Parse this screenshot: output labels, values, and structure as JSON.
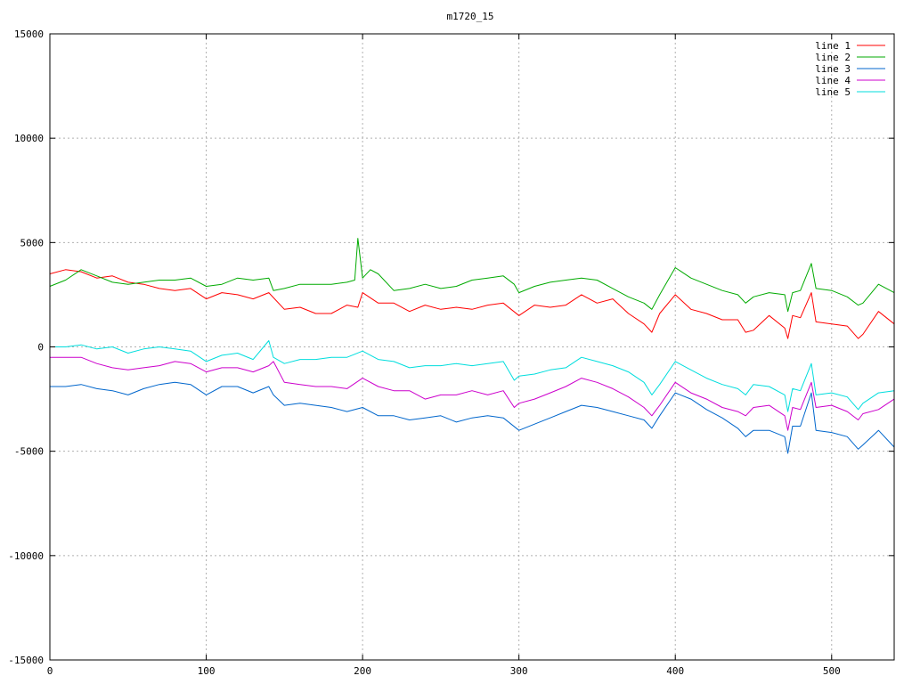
{
  "chart_data": {
    "type": "line",
    "title": "m1720_15",
    "xlabel": "",
    "ylabel": "",
    "xlim": [
      0,
      540
    ],
    "ylim": [
      -15000,
      15000
    ],
    "xticks": [
      0,
      100,
      200,
      300,
      400,
      500
    ],
    "yticks": [
      -15000,
      -10000,
      -5000,
      0,
      5000,
      10000,
      15000
    ],
    "grid": true,
    "legend_position": "top-right",
    "series": [
      {
        "name": "line 1",
        "color": "#ff0000",
        "x": [
          0,
          10,
          20,
          30,
          40,
          50,
          60,
          70,
          80,
          90,
          100,
          110,
          120,
          130,
          140,
          150,
          160,
          170,
          180,
          190,
          197,
          200,
          210,
          220,
          230,
          240,
          250,
          260,
          270,
          280,
          290,
          300,
          310,
          320,
          330,
          340,
          350,
          360,
          370,
          380,
          385,
          390,
          400,
          410,
          420,
          430,
          440,
          445,
          450,
          460,
          470,
          472,
          475,
          480,
          487,
          490,
          500,
          510,
          517,
          520,
          530,
          540
        ],
        "values": [
          3500,
          3700,
          3600,
          3300,
          3400,
          3100,
          3000,
          2800,
          2700,
          2800,
          2300,
          2600,
          2500,
          2300,
          2600,
          1800,
          1900,
          1600,
          1600,
          2000,
          1900,
          2600,
          2100,
          2100,
          1700,
          2000,
          1800,
          1900,
          1800,
          2000,
          2100,
          1500,
          2000,
          1900,
          2000,
          2500,
          2100,
          2300,
          1600,
          1100,
          700,
          1600,
          2500,
          1800,
          1600,
          1300,
          1300,
          700,
          800,
          1500,
          900,
          400,
          1500,
          1400,
          2600,
          1200,
          1100,
          1000,
          400,
          600,
          1700,
          1100
        ]
      },
      {
        "name": "line 2",
        "color": "#00aa00",
        "x": [
          0,
          10,
          20,
          30,
          40,
          50,
          60,
          70,
          80,
          90,
          100,
          110,
          120,
          130,
          140,
          143,
          150,
          160,
          170,
          180,
          190,
          195,
          197,
          200,
          205,
          210,
          220,
          230,
          240,
          250,
          260,
          270,
          280,
          290,
          297,
          300,
          310,
          320,
          330,
          340,
          350,
          360,
          370,
          380,
          385,
          390,
          400,
          410,
          420,
          430,
          440,
          445,
          450,
          460,
          470,
          472,
          475,
          480,
          487,
          490,
          500,
          510,
          517,
          520,
          530,
          540
        ],
        "values": [
          2900,
          3200,
          3700,
          3400,
          3100,
          3000,
          3100,
          3200,
          3200,
          3300,
          2900,
          3000,
          3300,
          3200,
          3300,
          2700,
          2800,
          3000,
          3000,
          3000,
          3100,
          3200,
          5200,
          3300,
          3700,
          3500,
          2700,
          2800,
          3000,
          2800,
          2900,
          3200,
          3300,
          3400,
          3000,
          2600,
          2900,
          3100,
          3200,
          3300,
          3200,
          2800,
          2400,
          2100,
          1800,
          2500,
          3800,
          3300,
          3000,
          2700,
          2500,
          2100,
          2400,
          2600,
          2500,
          1700,
          2600,
          2700,
          4000,
          2800,
          2700,
          2400,
          2000,
          2100,
          3000,
          2600
        ]
      },
      {
        "name": "line 3",
        "color": "#0066cc",
        "x": [
          0,
          10,
          20,
          30,
          40,
          50,
          60,
          70,
          80,
          90,
          100,
          110,
          120,
          130,
          140,
          143,
          150,
          160,
          170,
          180,
          190,
          200,
          210,
          220,
          230,
          240,
          250,
          260,
          270,
          280,
          290,
          300,
          310,
          320,
          330,
          340,
          350,
          360,
          370,
          380,
          385,
          390,
          400,
          410,
          420,
          430,
          440,
          445,
          450,
          460,
          470,
          472,
          475,
          480,
          487,
          490,
          500,
          510,
          517,
          520,
          530,
          540
        ],
        "values": [
          -1900,
          -1900,
          -1800,
          -2000,
          -2100,
          -2300,
          -2000,
          -1800,
          -1700,
          -1800,
          -2300,
          -1900,
          -1900,
          -2200,
          -1900,
          -2300,
          -2800,
          -2700,
          -2800,
          -2900,
          -3100,
          -2900,
          -3300,
          -3300,
          -3500,
          -3400,
          -3300,
          -3600,
          -3400,
          -3300,
          -3400,
          -4000,
          -3700,
          -3400,
          -3100,
          -2800,
          -2900,
          -3100,
          -3300,
          -3500,
          -3900,
          -3300,
          -2200,
          -2500,
          -3000,
          -3400,
          -3900,
          -4300,
          -4000,
          -4000,
          -4300,
          -5100,
          -3800,
          -3800,
          -2200,
          -4000,
          -4100,
          -4300,
          -4900,
          -4700,
          -4000,
          -4800
        ]
      },
      {
        "name": "line 4",
        "color": "#cc00cc",
        "x": [
          0,
          10,
          20,
          30,
          40,
          50,
          60,
          70,
          80,
          90,
          100,
          110,
          120,
          130,
          140,
          143,
          150,
          160,
          170,
          180,
          190,
          200,
          210,
          220,
          230,
          240,
          250,
          260,
          270,
          280,
          290,
          297,
          300,
          310,
          320,
          330,
          340,
          350,
          360,
          370,
          380,
          385,
          390,
          400,
          410,
          420,
          430,
          440,
          445,
          450,
          460,
          470,
          472,
          475,
          480,
          487,
          490,
          500,
          510,
          517,
          520,
          530,
          540
        ],
        "values": [
          -500,
          -500,
          -500,
          -800,
          -1000,
          -1100,
          -1000,
          -900,
          -700,
          -800,
          -1200,
          -1000,
          -1000,
          -1200,
          -900,
          -700,
          -1700,
          -1800,
          -1900,
          -1900,
          -2000,
          -1500,
          -1900,
          -2100,
          -2100,
          -2500,
          -2300,
          -2300,
          -2100,
          -2300,
          -2100,
          -2900,
          -2700,
          -2500,
          -2200,
          -1900,
          -1500,
          -1700,
          -2000,
          -2400,
          -2900,
          -3300,
          -2800,
          -1700,
          -2200,
          -2500,
          -2900,
          -3100,
          -3300,
          -2900,
          -2800,
          -3300,
          -4000,
          -2900,
          -3000,
          -1700,
          -2900,
          -2800,
          -3100,
          -3500,
          -3200,
          -3000,
          -2500
        ]
      },
      {
        "name": "line 5",
        "color": "#00dddd",
        "x": [
          0,
          10,
          20,
          30,
          40,
          50,
          60,
          70,
          80,
          90,
          100,
          110,
          120,
          130,
          140,
          143,
          150,
          160,
          170,
          180,
          190,
          200,
          210,
          220,
          230,
          240,
          250,
          260,
          270,
          280,
          290,
          297,
          300,
          310,
          320,
          330,
          340,
          350,
          360,
          370,
          380,
          385,
          390,
          400,
          410,
          420,
          430,
          440,
          445,
          450,
          460,
          470,
          472,
          475,
          480,
          487,
          490,
          500,
          510,
          517,
          520,
          530,
          540
        ],
        "values": [
          0,
          0,
          100,
          -100,
          0,
          -300,
          -100,
          0,
          -100,
          -200,
          -700,
          -400,
          -300,
          -600,
          300,
          -500,
          -800,
          -600,
          -600,
          -500,
          -500,
          -200,
          -600,
          -700,
          -1000,
          -900,
          -900,
          -800,
          -900,
          -800,
          -700,
          -1600,
          -1400,
          -1300,
          -1100,
          -1000,
          -500,
          -700,
          -900,
          -1200,
          -1700,
          -2300,
          -1800,
          -700,
          -1100,
          -1500,
          -1800,
          -2000,
          -2300,
          -1800,
          -1900,
          -2300,
          -3100,
          -2000,
          -2100,
          -800,
          -2300,
          -2200,
          -2400,
          -3000,
          -2700,
          -2200,
          -2100
        ]
      }
    ]
  }
}
